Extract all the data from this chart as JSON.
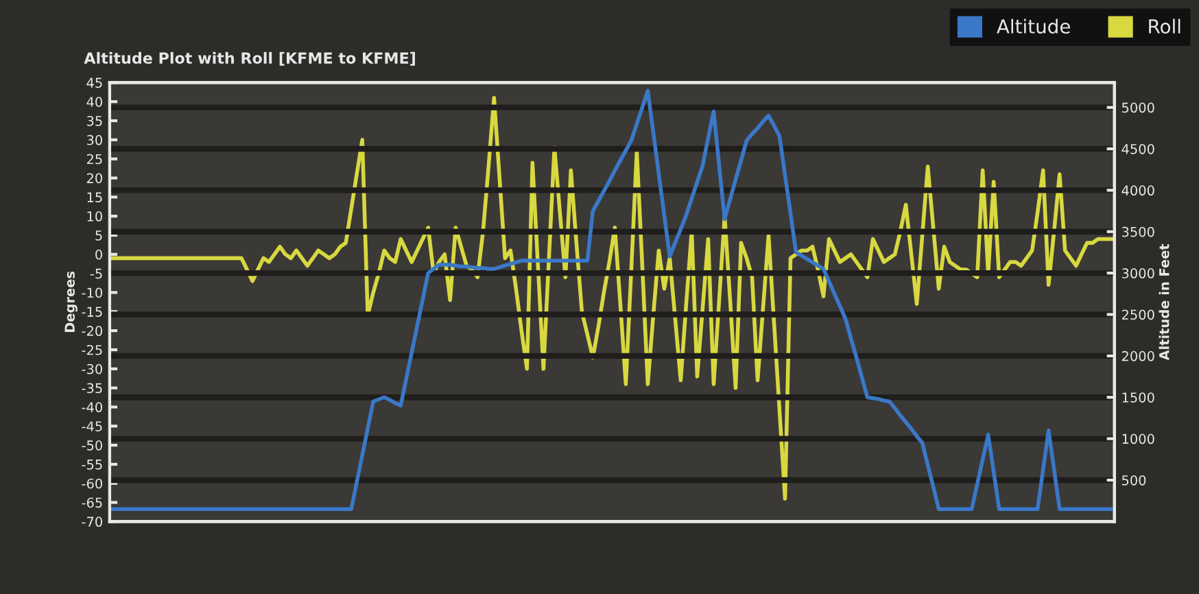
{
  "chart_data": {
    "type": "line",
    "title": "Altitude Plot with Roll [KFME to KFME]",
    "ylabel": "Degrees",
    "y2label": "Altitude in Feet",
    "categories": [
      null,
      null,
      null,
      null,
      null,
      null,
      null,
      null,
      null,
      null,
      null,
      null,
      null,
      null,
      null,
      null,
      null,
      null,
      null,
      null,
      null,
      null,
      null,
      null,
      null,
      null,
      null,
      null,
      null,
      null,
      null,
      null,
      null,
      null,
      null,
      null,
      null,
      null,
      null,
      null,
      null,
      null,
      null,
      null,
      null,
      null,
      null,
      null,
      null,
      null,
      null,
      null,
      null,
      null,
      null,
      null,
      null,
      null,
      null,
      null,
      null,
      null,
      null,
      null,
      null,
      null,
      null,
      null,
      null,
      null,
      null,
      null,
      null,
      null,
      null,
      null,
      null,
      null,
      null,
      null,
      null,
      null,
      null,
      null,
      null,
      null,
      null,
      null,
      null,
      null,
      null,
      null,
      null,
      null,
      null,
      null,
      null,
      null,
      null,
      null,
      null,
      null,
      null,
      null,
      null,
      null,
      null,
      null,
      null,
      null,
      null,
      null,
      null,
      null,
      null,
      null,
      null,
      null,
      null,
      null,
      null,
      null,
      null,
      null,
      null,
      null,
      null,
      null,
      null,
      null,
      null,
      null,
      null,
      null,
      null,
      null,
      null,
      null,
      null,
      null,
      null,
      null,
      null,
      null,
      null,
      null,
      null,
      null,
      null,
      null,
      null,
      null,
      null,
      null,
      null,
      null,
      null,
      null,
      null,
      null,
      null,
      null,
      null,
      null,
      null,
      null,
      null,
      null,
      null,
      null,
      null,
      null,
      null,
      null,
      null,
      null,
      null,
      null,
      null,
      null,
      null,
      null,
      null,
      null
    ],
    "ylim": [
      -70,
      45
    ],
    "yticks": [
      -70,
      -65,
      -60,
      -55,
      -50,
      -45,
      -40,
      -35,
      -30,
      -25,
      -20,
      -15,
      -10,
      -5,
      0,
      5,
      10,
      15,
      20,
      25,
      30,
      35,
      40,
      45
    ],
    "y2lim": [
      0,
      5300
    ],
    "y2ticks": [
      500,
      1000,
      1500,
      2000,
      2500,
      3000,
      3500,
      4000,
      4500,
      5000
    ],
    "grid": "y2",
    "legend": "top right",
    "marker": "none",
    "line_style": "solid",
    "series": [
      {
        "name": "Altitude",
        "color": "#3a78c8",
        "axis": "y2",
        "values": [
          150,
          150,
          150,
          150,
          150,
          150,
          150,
          150,
          150,
          150,
          150,
          150,
          150,
          150,
          150,
          150,
          150,
          150,
          150,
          150,
          150,
          150,
          150,
          150,
          150,
          150,
          150,
          150,
          150,
          150,
          150,
          150,
          150,
          150,
          150,
          150,
          150,
          150,
          150,
          150,
          150,
          150,
          150,
          150,
          150,
          475,
          800,
          1125,
          1450,
          1475,
          1500,
          1470,
          1430,
          1400,
          1720,
          2040,
          2360,
          2680,
          3000,
          3050,
          3100,
          3100,
          3100,
          3090,
          3080,
          3080,
          3070,
          3060,
          3060,
          3050,
          3050,
          3070,
          3090,
          3110,
          3130,
          3150,
          3150,
          3150,
          3150,
          3150,
          3150,
          3150,
          3150,
          3150,
          3150,
          3150,
          3150,
          3150,
          3750,
          3870,
          3990,
          4110,
          4240,
          4360,
          4480,
          4600,
          4800,
          5000,
          5200,
          4700,
          4200,
          3700,
          3200,
          3370,
          3530,
          3700,
          3900,
          4100,
          4300,
          4630,
          4950,
          4300,
          3650,
          3890,
          4130,
          4360,
          4600,
          4680,
          4750,
          4830,
          4900,
          4780,
          4650,
          4180,
          3720,
          3250,
          3210,
          3170,
          3130,
          3090,
          3050,
          2900,
          2750,
          2600,
          2450,
          2210,
          1980,
          1740,
          1500,
          1490,
          1480,
          1460,
          1450,
          1370,
          1280,
          1200,
          1120,
          1030,
          950,
          680,
          420,
          150,
          150,
          150,
          150,
          150,
          150,
          150,
          450,
          750,
          1050,
          600,
          150,
          150,
          150,
          150,
          150,
          150,
          150,
          150,
          630,
          1100,
          630,
          150,
          150,
          150,
          150,
          150,
          150,
          150,
          150,
          150,
          150,
          150
        ]
      },
      {
        "name": "Roll",
        "color": "#d8d840",
        "values": [
          -1,
          -1,
          -1,
          -1,
          -1,
          -1,
          -1,
          -1,
          -1,
          -1,
          -1,
          -1,
          -1,
          -1,
          -1,
          -1,
          -1,
          -1,
          -1,
          -1,
          -1,
          -1,
          -1,
          -1,
          -1,
          -4,
          -7,
          -4,
          -1,
          -2,
          0,
          2,
          0,
          -1,
          1,
          -1,
          -3,
          -1,
          1,
          0,
          -1,
          0,
          2,
          3,
          12,
          21,
          30,
          -16,
          -10,
          -5,
          1,
          -1,
          -2,
          4,
          1,
          -2,
          1,
          4,
          7,
          -5,
          -2,
          0,
          -12,
          7,
          2,
          -3,
          -4,
          -6,
          6,
          23,
          41,
          20,
          -1,
          1,
          -9,
          -20,
          -30,
          24,
          -3,
          -30,
          -1,
          28,
          11,
          -6,
          22,
          3,
          -15,
          -21,
          -27,
          -19,
          -10,
          -2,
          7,
          -13,
          -34,
          -4,
          27,
          -3,
          -34,
          -16,
          1,
          -9,
          -1,
          -17,
          -33,
          -13,
          6,
          -32,
          -14,
          4,
          -34,
          -12,
          10,
          -12,
          -35,
          3,
          -1,
          -6,
          -33,
          -14,
          5,
          -18,
          -41,
          -64,
          -1,
          0,
          1,
          1,
          2,
          -4,
          -11,
          4,
          1,
          -2,
          -1,
          0,
          -2,
          -4,
          -6,
          4,
          1,
          -2,
          -1,
          0,
          6,
          13,
          0,
          -13,
          5,
          23,
          7,
          -9,
          2,
          -2,
          -3,
          -4,
          -4,
          -5,
          -6,
          22,
          -5,
          19,
          -6,
          -4,
          -2,
          -2,
          -3,
          -1,
          1,
          11,
          22,
          -8,
          6,
          21,
          1,
          -1,
          -3,
          0,
          3,
          3,
          4,
          4,
          4,
          4
        ]
      }
    ]
  }
}
